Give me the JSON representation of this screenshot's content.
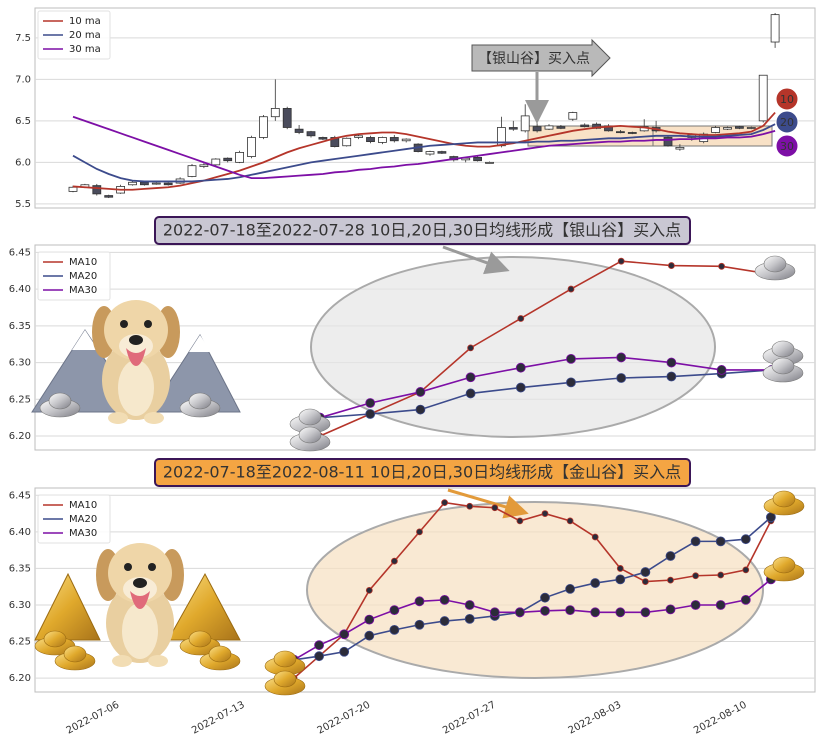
{
  "chart_data": [
    {
      "type": "candlestick",
      "open": [
        5.65,
        5.7,
        5.72,
        5.6,
        5.63,
        5.73,
        5.76,
        5.74,
        5.75,
        5.75,
        5.83,
        5.95,
        5.97,
        6.05,
        6.0,
        6.07,
        6.3,
        6.55,
        6.65,
        6.4,
        6.37,
        6.3,
        6.3,
        6.2,
        6.3,
        6.3,
        6.24,
        6.3,
        6.26,
        6.22,
        6.1,
        6.13,
        6.07,
        6.03,
        6.06,
        6.0,
        6.2,
        6.42,
        6.38,
        6.43,
        6.4,
        6.43,
        6.52,
        6.45,
        6.46,
        6.44,
        6.37,
        6.36,
        6.38,
        6.42,
        6.3,
        6.16,
        6.3,
        6.25,
        6.36,
        6.4,
        6.43,
        6.41,
        6.5,
        7.45
      ],
      "high": [
        5.72,
        5.74,
        5.74,
        5.61,
        5.73,
        5.78,
        5.77,
        5.76,
        5.76,
        5.82,
        5.98,
        5.99,
        6.05,
        6.06,
        6.14,
        6.32,
        6.57,
        7.0,
        6.67,
        6.45,
        6.38,
        6.31,
        6.32,
        6.3,
        6.33,
        6.32,
        6.31,
        6.33,
        6.29,
        6.23,
        6.14,
        6.14,
        6.08,
        6.06,
        6.07,
        6.01,
        6.55,
        6.5,
        6.7,
        6.52,
        6.46,
        6.45,
        6.61,
        6.47,
        6.48,
        6.46,
        6.39,
        6.37,
        6.52,
        6.5,
        6.33,
        6.22,
        6.35,
        6.36,
        6.44,
        6.43,
        6.44,
        6.43,
        7.05,
        7.8
      ],
      "low": [
        5.64,
        5.69,
        5.6,
        5.57,
        5.62,
        5.72,
        5.72,
        5.73,
        5.72,
        5.74,
        5.82,
        5.93,
        5.96,
        6.0,
        5.99,
        6.05,
        6.28,
        6.5,
        6.4,
        6.34,
        6.3,
        6.27,
        6.18,
        6.19,
        6.28,
        6.23,
        6.22,
        6.24,
        6.24,
        6.12,
        6.08,
        6.1,
        6.01,
        6.0,
        6.01,
        5.99,
        6.18,
        6.38,
        6.36,
        6.36,
        6.39,
        6.4,
        6.5,
        6.42,
        6.4,
        6.37,
        6.35,
        6.34,
        6.37,
        6.36,
        6.19,
        6.14,
        6.26,
        6.23,
        6.35,
        6.39,
        6.4,
        6.4,
        6.48,
        7.38
      ],
      "close": [
        5.7,
        5.73,
        5.62,
        5.58,
        5.71,
        5.76,
        5.73,
        5.75,
        5.73,
        5.8,
        5.96,
        5.97,
        6.04,
        6.02,
        6.12,
        6.3,
        6.55,
        6.65,
        6.42,
        6.36,
        6.32,
        6.28,
        6.19,
        6.29,
        6.32,
        6.25,
        6.3,
        6.26,
        6.28,
        6.13,
        6.13,
        6.11,
        6.03,
        6.05,
        6.02,
        6.0,
        6.42,
        6.4,
        6.56,
        6.38,
        6.44,
        6.41,
        6.6,
        6.43,
        6.41,
        6.38,
        6.36,
        6.35,
        6.43,
        6.38,
        6.2,
        6.18,
        6.33,
        6.34,
        6.42,
        6.42,
        6.41,
        6.42,
        7.05,
        7.78
      ],
      "up_color": "#ffffff",
      "down_color": "#4a4c5c",
      "edge_color": "#333333",
      "series": [
        {
          "name": "10 ma",
          "color": "#b5352a",
          "end_label": "10",
          "values": [
            5.71,
            5.7,
            5.69,
            5.68,
            5.67,
            5.67,
            5.68,
            5.69,
            5.7,
            5.72,
            5.75,
            5.78,
            5.82,
            5.86,
            5.9,
            5.95,
            6.0,
            6.06,
            6.12,
            6.17,
            6.21,
            6.25,
            6.29,
            6.32,
            6.34,
            6.35,
            6.36,
            6.36,
            6.34,
            6.31,
            6.28,
            6.25,
            6.22,
            6.2,
            6.19,
            6.19,
            6.21,
            6.23,
            6.26,
            6.29,
            6.32,
            6.35,
            6.38,
            6.4,
            6.42,
            6.43,
            6.44,
            6.43,
            6.42,
            6.4,
            6.37,
            6.35,
            6.34,
            6.33,
            6.33,
            6.34,
            6.35,
            6.37,
            6.44,
            6.6
          ]
        },
        {
          "name": "20 ma",
          "color": "#3c4b8c",
          "end_label": "20",
          "values": [
            6.08,
            6.0,
            5.92,
            5.86,
            5.81,
            5.78,
            5.77,
            5.77,
            5.77,
            5.77,
            5.77,
            5.78,
            5.79,
            5.8,
            5.82,
            5.85,
            5.88,
            5.91,
            5.94,
            5.97,
            6.0,
            6.02,
            6.04,
            6.06,
            6.08,
            6.1,
            6.12,
            6.14,
            6.16,
            6.18,
            6.2,
            6.21,
            6.22,
            6.23,
            6.24,
            6.24,
            6.24,
            6.24,
            6.24,
            6.25,
            6.25,
            6.26,
            6.26,
            6.27,
            6.28,
            6.29,
            6.29,
            6.3,
            6.31,
            6.32,
            6.32,
            6.32,
            6.31,
            6.31,
            6.31,
            6.32,
            6.33,
            6.34,
            6.39,
            6.46
          ]
        },
        {
          "name": "30 ma",
          "color": "#7d0fa6",
          "end_label": "30",
          "values": [
            6.55,
            6.5,
            6.45,
            6.4,
            6.35,
            6.3,
            6.25,
            6.2,
            6.15,
            6.1,
            6.05,
            6.0,
            5.95,
            5.9,
            5.85,
            5.81,
            5.81,
            5.82,
            5.83,
            5.84,
            5.85,
            5.86,
            5.88,
            5.89,
            5.91,
            5.92,
            5.94,
            5.95,
            5.97,
            5.98,
            6.0,
            6.02,
            6.04,
            6.06,
            6.08,
            6.1,
            6.12,
            6.14,
            6.16,
            6.18,
            6.2,
            6.21,
            6.22,
            6.23,
            6.24,
            6.25,
            6.25,
            6.26,
            6.26,
            6.27,
            6.27,
            6.28,
            6.28,
            6.29,
            6.29,
            6.3,
            6.3,
            6.31,
            6.34,
            6.38
          ]
        }
      ],
      "annotation": "【银山谷】买入点",
      "ylim": [
        5.45,
        7.86
      ],
      "yticks": [
        5.5,
        {
          "value": 6,
          "label": "6.0"
        },
        6.5,
        {
          "value": 7,
          "label": "7.0"
        },
        7.5
      ],
      "grid": true,
      "legend": "upper left"
    },
    {
      "type": "line",
      "title": "2022-07-18至2022-07-28 10日,20日,30日均线形成【银山谷】买入点",
      "series": [
        {
          "name": "MA10",
          "color": "#b5352a",
          "values": [
            6.2,
            6.23,
            6.26,
            6.32,
            6.36,
            6.4,
            6.438,
            6.432,
            6.431,
            6.42
          ]
        },
        {
          "name": "MA20",
          "color": "#3c4b8c",
          "values": [
            6.225,
            6.23,
            6.236,
            6.258,
            6.266,
            6.273,
            6.279,
            6.281,
            6.285,
            6.29
          ]
        },
        {
          "name": "MA30",
          "color": "#7d0fa6",
          "values": [
            6.225,
            6.245,
            6.26,
            6.28,
            6.293,
            6.305,
            6.307,
            6.3,
            6.29,
            6.29
          ]
        }
      ],
      "ylim": [
        6.181,
        6.46
      ],
      "yticks": [
        {
          "value": 6.2,
          "label": "6.20"
        },
        6.25,
        {
          "value": 6.3,
          "label": "6.30"
        },
        6.35,
        {
          "value": 6.4,
          "label": "6.40"
        },
        6.45
      ],
      "grid": true,
      "legend": "upper left"
    },
    {
      "type": "line",
      "title": "2022-07-18至2022-08-11 10日,20日,30日均线形成【金山谷】买入点",
      "x": [
        "2022-07-15",
        "2022-07-18",
        "2022-07-19",
        "2022-07-20",
        "2022-07-21",
        "2022-07-22",
        "2022-07-25",
        "2022-07-26",
        "2022-07-27",
        "2022-07-28",
        "2022-07-29",
        "2022-08-01",
        "2022-08-02",
        "2022-08-03",
        "2022-08-04",
        "2022-08-05",
        "2022-08-08",
        "2022-08-09",
        "2022-08-10",
        "2022-08-11"
      ],
      "series": [
        {
          "name": "MA10",
          "color": "#b5352a",
          "values": [
            6.2,
            6.23,
            6.26,
            6.32,
            6.36,
            6.4,
            6.44,
            6.435,
            6.433,
            6.415,
            6.425,
            6.415,
            6.393,
            6.35,
            6.332,
            6.334,
            6.34,
            6.341,
            6.348,
            6.415
          ]
        },
        {
          "name": "MA20",
          "color": "#3c4b8c",
          "values": [
            6.225,
            6.23,
            6.236,
            6.258,
            6.266,
            6.273,
            6.278,
            6.281,
            6.285,
            6.29,
            6.31,
            6.322,
            6.33,
            6.335,
            6.345,
            6.367,
            6.387,
            6.387,
            6.39,
            6.42
          ]
        },
        {
          "name": "MA30",
          "color": "#7d0fa6",
          "values": [
            6.225,
            6.245,
            6.26,
            6.28,
            6.293,
            6.305,
            6.307,
            6.3,
            6.29,
            6.29,
            6.292,
            6.293,
            6.29,
            6.29,
            6.29,
            6.294,
            6.3,
            6.3,
            6.307,
            6.335
          ]
        }
      ],
      "xlim": [
        "2022-07-01",
        "2022-08-12"
      ],
      "xticks": [
        "2022-07-06",
        "2022-07-13",
        "2022-07-20",
        "2022-07-27",
        "2022-08-03",
        "2022-08-10"
      ],
      "ylim": [
        6.181,
        6.46
      ],
      "yticks": [
        {
          "value": 6.2,
          "label": "6.20"
        },
        6.25,
        {
          "value": 6.3,
          "label": "6.30"
        },
        6.35,
        {
          "value": 6.4,
          "label": "6.40"
        },
        6.45
      ],
      "grid": true,
      "legend": "upper left"
    }
  ]
}
